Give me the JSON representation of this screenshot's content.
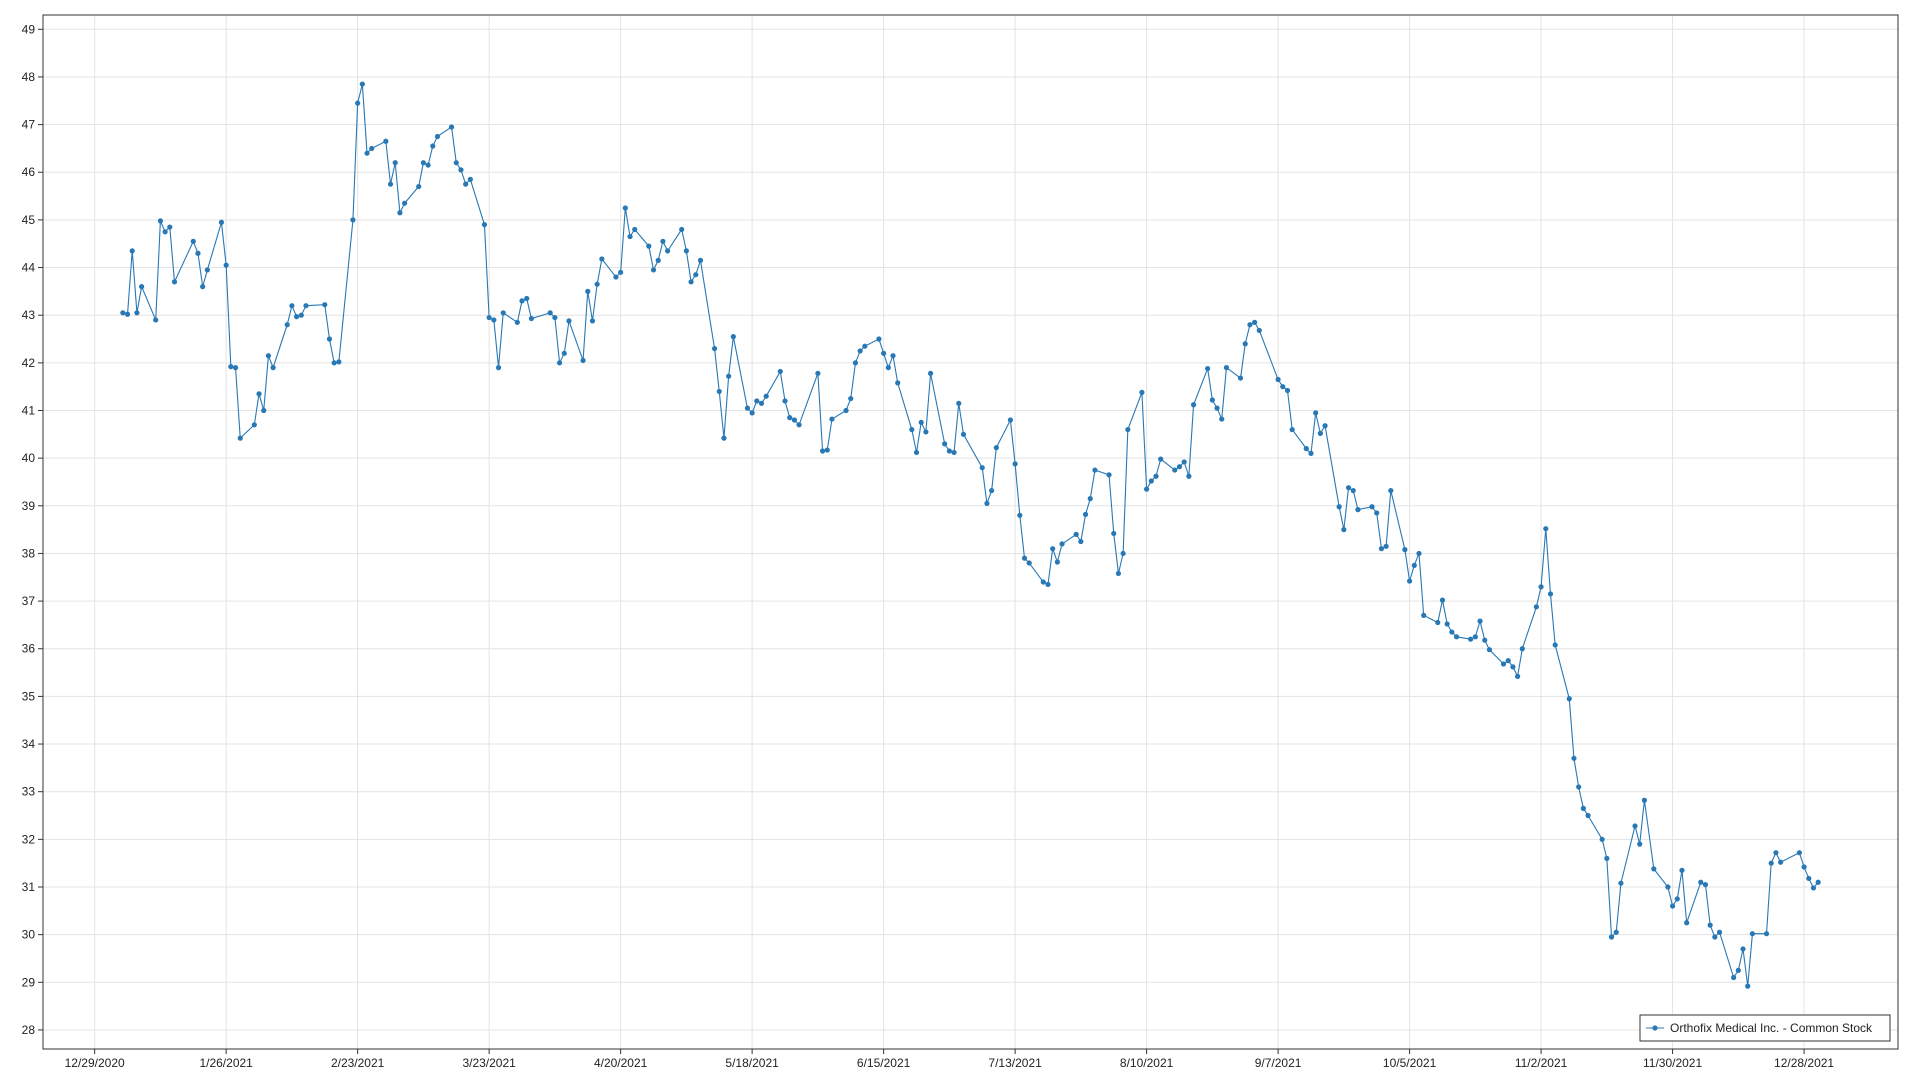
{
  "chart_data": {
    "type": "line",
    "grid": true,
    "legend": "lower right",
    "xlim": [
      "12/18/2020",
      "1/17/2022"
    ],
    "xticks": [
      "12/29/2020",
      "1/26/2021",
      "2/23/2021",
      "3/23/2021",
      "4/20/2021",
      "5/18/2021",
      "6/15/2021",
      "7/13/2021",
      "8/10/2021",
      "9/7/2021",
      "10/5/2021",
      "11/2/2021",
      "11/30/2021",
      "12/28/2021"
    ],
    "ylim": [
      27.6,
      49.3
    ],
    "yticks": [
      28,
      29,
      30,
      31,
      32,
      33,
      34,
      35,
      36,
      37,
      38,
      39,
      40,
      41,
      42,
      43,
      44,
      45,
      46,
      47,
      48,
      49
    ],
    "x": [
      "1/4/2021",
      "1/5/2021",
      "1/6/2021",
      "1/7/2021",
      "1/8/2021",
      "1/11/2021",
      "1/12/2021",
      "1/13/2021",
      "1/14/2021",
      "1/15/2021",
      "1/19/2021",
      "1/20/2021",
      "1/21/2021",
      "1/22/2021",
      "1/25/2021",
      "1/26/2021",
      "1/27/2021",
      "1/28/2021",
      "1/29/2021",
      "2/1/2021",
      "2/2/2021",
      "2/3/2021",
      "2/4/2021",
      "2/5/2021",
      "2/8/2021",
      "2/9/2021",
      "2/10/2021",
      "2/11/2021",
      "2/12/2021",
      "2/16/2021",
      "2/17/2021",
      "2/18/2021",
      "2/19/2021",
      "2/22/2021",
      "2/23/2021",
      "2/24/2021",
      "2/25/2021",
      "2/26/2021",
      "3/1/2021",
      "3/2/2021",
      "3/3/2021",
      "3/4/2021",
      "3/5/2021",
      "3/8/2021",
      "3/9/2021",
      "3/10/2021",
      "3/11/2021",
      "3/12/2021",
      "3/15/2021",
      "3/16/2021",
      "3/17/2021",
      "3/18/2021",
      "3/19/2021",
      "3/22/2021",
      "3/23/2021",
      "3/24/2021",
      "3/25/2021",
      "3/26/2021",
      "3/29/2021",
      "3/30/2021",
      "3/31/2021",
      "4/1/2021",
      "4/5/2021",
      "4/6/2021",
      "4/7/2021",
      "4/8/2021",
      "4/9/2021",
      "4/12/2021",
      "4/13/2021",
      "4/14/2021",
      "4/15/2021",
      "4/16/2021",
      "4/19/2021",
      "4/20/2021",
      "4/21/2021",
      "4/22/2021",
      "4/23/2021",
      "4/26/2021",
      "4/27/2021",
      "4/28/2021",
      "4/29/2021",
      "4/30/2021",
      "5/3/2021",
      "5/4/2021",
      "5/5/2021",
      "5/6/2021",
      "5/7/2021",
      "5/10/2021",
      "5/11/2021",
      "5/12/2021",
      "5/13/2021",
      "5/14/2021",
      "5/17/2021",
      "5/18/2021",
      "5/19/2021",
      "5/20/2021",
      "5/21/2021",
      "5/24/2021",
      "5/25/2021",
      "5/26/2021",
      "5/27/2021",
      "5/28/2021",
      "6/1/2021",
      "6/2/2021",
      "6/3/2021",
      "6/4/2021",
      "6/7/2021",
      "6/8/2021",
      "6/9/2021",
      "6/10/2021",
      "6/11/2021",
      "6/14/2021",
      "6/15/2021",
      "6/16/2021",
      "6/17/2021",
      "6/18/2021",
      "6/21/2021",
      "6/22/2021",
      "6/23/2021",
      "6/24/2021",
      "6/25/2021",
      "6/28/2021",
      "6/29/2021",
      "6/30/2021",
      "7/1/2021",
      "7/2/2021",
      "7/6/2021",
      "7/7/2021",
      "7/8/2021",
      "7/9/2021",
      "7/12/2021",
      "7/13/2021",
      "7/14/2021",
      "7/15/2021",
      "7/16/2021",
      "7/19/2021",
      "7/20/2021",
      "7/21/2021",
      "7/22/2021",
      "7/23/2021",
      "7/26/2021",
      "7/27/2021",
      "7/28/2021",
      "7/29/2021",
      "7/30/2021",
      "8/2/2021",
      "8/3/2021",
      "8/4/2021",
      "8/5/2021",
      "8/6/2021",
      "8/9/2021",
      "8/10/2021",
      "8/11/2021",
      "8/12/2021",
      "8/13/2021",
      "8/16/2021",
      "8/17/2021",
      "8/18/2021",
      "8/19/2021",
      "8/20/2021",
      "8/23/2021",
      "8/24/2021",
      "8/25/2021",
      "8/26/2021",
      "8/27/2021",
      "8/30/2021",
      "8/31/2021",
      "9/1/2021",
      "9/2/2021",
      "9/3/2021",
      "9/7/2021",
      "9/8/2021",
      "9/9/2021",
      "9/10/2021",
      "9/13/2021",
      "9/14/2021",
      "9/15/2021",
      "9/16/2021",
      "9/17/2021",
      "9/20/2021",
      "9/21/2021",
      "9/22/2021",
      "9/23/2021",
      "9/24/2021",
      "9/27/2021",
      "9/28/2021",
      "9/29/2021",
      "9/30/2021",
      "10/1/2021",
      "10/4/2021",
      "10/5/2021",
      "10/6/2021",
      "10/7/2021",
      "10/8/2021",
      "10/11/2021",
      "10/12/2021",
      "10/13/2021",
      "10/14/2021",
      "10/15/2021",
      "10/18/2021",
      "10/19/2021",
      "10/20/2021",
      "10/21/2021",
      "10/22/2021",
      "10/25/2021",
      "10/26/2021",
      "10/27/2021",
      "10/28/2021",
      "10/29/2021",
      "11/1/2021",
      "11/2/2021",
      "11/3/2021",
      "11/4/2021",
      "11/5/2021",
      "11/8/2021",
      "11/9/2021",
      "11/10/2021",
      "11/11/2021",
      "11/12/2021",
      "11/15/2021",
      "11/16/2021",
      "11/17/2021",
      "11/18/2021",
      "11/19/2021",
      "11/22/2021",
      "11/23/2021",
      "11/24/2021",
      "11/26/2021",
      "11/29/2021",
      "11/30/2021",
      "12/1/2021",
      "12/2/2021",
      "12/3/2021",
      "12/6/2021",
      "12/7/2021",
      "12/8/2021",
      "12/9/2021",
      "12/10/2021",
      "12/13/2021",
      "12/14/2021",
      "12/15/2021",
      "12/16/2021",
      "12/17/2021",
      "12/20/2021",
      "12/21/2021",
      "12/22/2021",
      "12/23/2021",
      "12/27/2021",
      "12/28/2021",
      "12/29/2021",
      "12/30/2021",
      "12/31/2021"
    ],
    "series": [
      {
        "name": "Orthofix Medical Inc.  - Common Stock",
        "color": "#2878b5",
        "values": [
          43.05,
          43.02,
          44.35,
          43.05,
          43.6,
          42.9,
          44.98,
          44.75,
          44.85,
          43.7,
          44.55,
          44.3,
          43.6,
          43.95,
          44.95,
          44.05,
          41.92,
          41.9,
          40.42,
          40.7,
          41.35,
          41.0,
          42.15,
          41.9,
          42.8,
          43.2,
          42.97,
          43.0,
          43.2,
          43.22,
          42.5,
          42.0,
          42.02,
          45.0,
          47.45,
          47.85,
          46.4,
          46.5,
          46.65,
          45.75,
          46.2,
          45.15,
          45.35,
          45.7,
          46.2,
          46.15,
          46.55,
          46.75,
          46.95,
          46.2,
          46.05,
          45.75,
          45.85,
          44.9,
          42.95,
          42.9,
          41.9,
          43.05,
          42.85,
          43.3,
          43.35,
          42.93,
          43.05,
          42.95,
          42.0,
          42.2,
          42.88,
          42.05,
          43.5,
          42.88,
          43.65,
          44.18,
          43.8,
          43.9,
          45.25,
          44.65,
          44.8,
          44.45,
          43.95,
          44.15,
          44.55,
          44.35,
          44.8,
          44.35,
          43.7,
          43.85,
          44.15,
          42.3,
          41.4,
          40.42,
          41.72,
          42.55,
          41.05,
          40.95,
          41.2,
          41.15,
          41.3,
          41.82,
          41.2,
          40.85,
          40.8,
          40.7,
          41.78,
          40.15,
          40.17,
          40.82,
          41.0,
          41.25,
          42.0,
          42.25,
          42.35,
          42.5,
          42.2,
          41.9,
          42.15,
          41.58,
          40.6,
          40.12,
          40.75,
          40.55,
          41.78,
          40.3,
          40.15,
          40.12,
          41.15,
          40.5,
          39.8,
          39.05,
          39.32,
          40.22,
          40.8,
          39.88,
          38.8,
          37.9,
          37.8,
          37.4,
          37.35,
          38.1,
          37.82,
          38.2,
          38.4,
          38.25,
          38.82,
          39.15,
          39.75,
          39.65,
          38.42,
          37.58,
          38.0,
          40.6,
          41.38,
          39.35,
          39.52,
          39.62,
          39.98,
          39.75,
          39.82,
          39.92,
          39.62,
          41.12,
          41.88,
          41.22,
          41.05,
          40.82,
          41.9,
          41.68,
          42.4,
          42.8,
          42.85,
          42.68,
          41.65,
          41.5,
          41.42,
          40.6,
          40.2,
          40.1,
          40.95,
          40.52,
          40.68,
          38.98,
          38.5,
          39.38,
          39.32,
          38.92,
          38.98,
          38.85,
          38.1,
          38.15,
          39.32,
          38.08,
          37.42,
          37.75,
          38.0,
          36.7,
          36.55,
          37.02,
          36.52,
          36.35,
          36.25,
          36.2,
          36.25,
          36.58,
          36.18,
          35.98,
          35.68,
          35.75,
          35.62,
          35.42,
          36.0,
          36.88,
          37.3,
          38.52,
          37.15,
          36.08,
          34.95,
          33.7,
          33.1,
          32.65,
          32.5,
          32.0,
          31.6,
          29.95,
          30.05,
          31.08,
          32.28,
          31.9,
          32.82,
          31.38,
          31.0,
          30.6,
          30.75,
          31.35,
          30.25,
          31.1,
          31.05,
          30.2,
          29.95,
          30.05,
          29.1,
          29.25,
          29.7,
          28.92,
          30.02,
          30.02,
          31.5,
          31.72,
          31.52,
          31.72,
          31.42,
          31.18,
          30.98,
          31.1
        ]
      }
    ]
  }
}
